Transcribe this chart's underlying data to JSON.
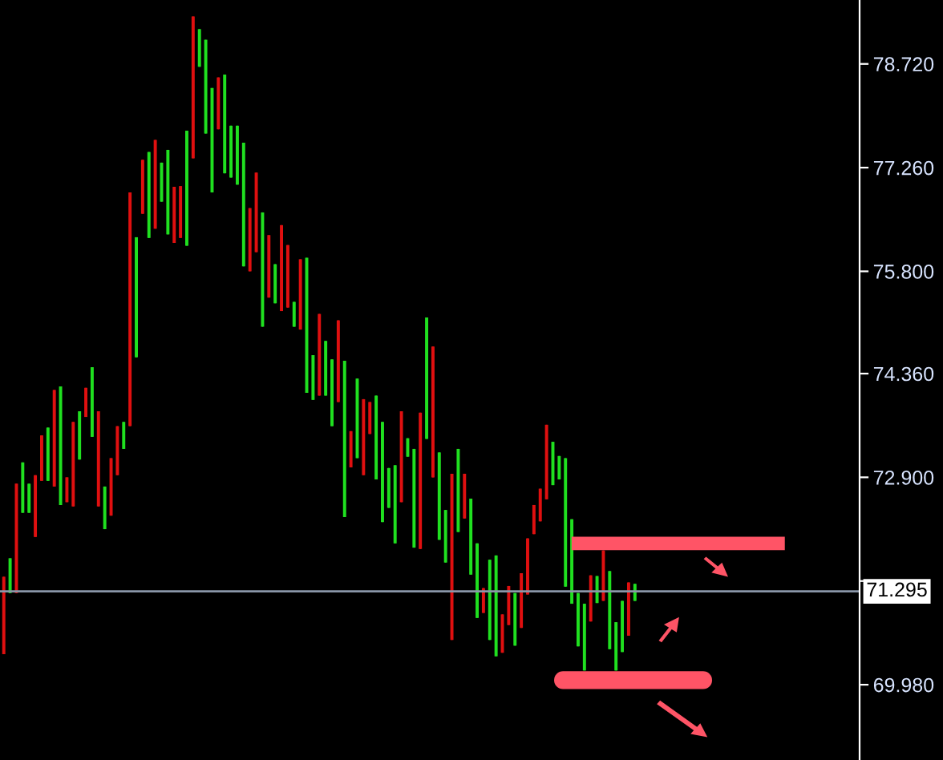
{
  "chart_data": {
    "type": "candlestick",
    "categories": [
      null,
      null,
      null,
      null,
      null,
      null,
      null,
      null,
      null,
      null,
      null,
      null,
      null,
      null,
      null,
      null,
      null,
      null,
      null,
      null,
      null,
      null,
      null,
      null,
      null,
      null,
      null,
      null,
      null,
      null,
      null,
      null,
      null,
      null,
      null,
      null,
      null,
      null,
      null,
      null,
      null,
      null,
      null,
      null,
      null,
      null,
      null,
      null,
      null,
      null,
      null,
      null,
      null,
      null,
      null,
      null,
      null,
      null,
      null,
      null,
      null,
      null,
      null,
      null,
      null,
      null,
      null,
      null,
      null,
      null,
      null,
      null,
      null,
      null,
      null,
      null,
      null,
      null,
      null,
      null,
      null,
      null,
      null,
      null,
      null,
      null,
      null,
      null,
      null,
      null,
      null,
      null,
      null,
      null,
      null,
      null,
      null,
      null,
      null,
      null,
      null,
      null,
      null,
      null,
      null,
      null,
      null,
      null,
      null,
      null,
      null,
      null,
      null,
      null,
      null,
      null,
      null,
      null,
      null,
      null,
      null,
      null,
      null,
      null,
      null,
      null,
      null,
      null,
      null,
      null,
      null,
      null,
      null,
      null,
      null,
      null
    ],
    "ohlc": [
      [
        70.41,
        71.5,
        70.41,
        71.5
      ],
      [
        71.76,
        71.76,
        71.27,
        71.27
      ],
      [
        71.27,
        72.81,
        71.27,
        72.81
      ],
      [
        73.11,
        73.11,
        72.4,
        72.4
      ],
      [
        72.81,
        72.81,
        72.4,
        72.4
      ],
      [
        72.06,
        72.93,
        72.06,
        72.93
      ],
      [
        72.85,
        73.49,
        72.85,
        73.49
      ],
      [
        73.6,
        73.6,
        72.85,
        72.85
      ],
      [
        72.77,
        74.13,
        72.77,
        74.13
      ],
      [
        74.18,
        74.18,
        72.51,
        72.51
      ],
      [
        72.55,
        72.9,
        72.55,
        72.9
      ],
      [
        72.49,
        73.68,
        72.49,
        73.68
      ],
      [
        73.83,
        73.83,
        73.15,
        73.15
      ],
      [
        73.75,
        74.16,
        73.75,
        74.16
      ],
      [
        74.45,
        74.45,
        73.47,
        73.47
      ],
      [
        72.49,
        73.83,
        72.49,
        73.83
      ],
      [
        72.77,
        72.77,
        72.17,
        72.17
      ],
      [
        72.36,
        73.17,
        72.36,
        73.17
      ],
      [
        72.93,
        73.62,
        72.93,
        73.62
      ],
      [
        73.68,
        73.68,
        73.3,
        73.3
      ],
      [
        73.62,
        76.91,
        73.62,
        76.91
      ],
      [
        76.28,
        76.28,
        74.59,
        74.59
      ],
      [
        76.61,
        77.37,
        76.61,
        77.37
      ],
      [
        77.48,
        77.48,
        76.27,
        76.27
      ],
      [
        76.4,
        77.65,
        76.4,
        77.65
      ],
      [
        77.33,
        77.33,
        76.78,
        76.78
      ],
      [
        77.51,
        77.51,
        76.32,
        76.32
      ],
      [
        76.2,
        76.99,
        76.2,
        76.99
      ],
      [
        76.27,
        77.0,
        76.27,
        77.0
      ],
      [
        77.78,
        77.78,
        76.16,
        76.16
      ],
      [
        77.39,
        79.39,
        77.39,
        79.39
      ],
      [
        79.21,
        79.21,
        78.68,
        78.68
      ],
      [
        79.06,
        79.06,
        77.74,
        77.74
      ],
      [
        78.38,
        78.38,
        76.91,
        76.91
      ],
      [
        77.8,
        78.53,
        77.8,
        78.53
      ],
      [
        78.57,
        78.57,
        77.18,
        77.18
      ],
      [
        77.85,
        77.85,
        77.12,
        77.12
      ],
      [
        77.85,
        77.85,
        77.02,
        77.02
      ],
      [
        77.61,
        77.61,
        75.87,
        75.87
      ],
      [
        75.8,
        76.69,
        75.8,
        76.69
      ],
      [
        76.07,
        77.19,
        76.07,
        77.19
      ],
      [
        76.63,
        76.63,
        75.02,
        75.02
      ],
      [
        75.43,
        76.31,
        75.43,
        76.31
      ],
      [
        75.9,
        75.9,
        75.35,
        75.35
      ],
      [
        75.24,
        76.45,
        75.24,
        76.45
      ],
      [
        75.29,
        76.17,
        75.29,
        76.17
      ],
      [
        75.37,
        75.37,
        75.02,
        75.02
      ],
      [
        74.98,
        75.97,
        74.98,
        75.97
      ],
      [
        75.99,
        75.99,
        74.09,
        74.09
      ],
      [
        74.62,
        74.62,
        73.99,
        73.99
      ],
      [
        74.05,
        75.2,
        74.05,
        75.2
      ],
      [
        74.82,
        74.82,
        74.05,
        74.05
      ],
      [
        74.56,
        74.56,
        73.62,
        73.62
      ],
      [
        73.96,
        75.11,
        73.96,
        75.11
      ],
      [
        74.54,
        74.54,
        72.34,
        72.34
      ],
      [
        73.04,
        73.55,
        73.04,
        73.55
      ],
      [
        74.29,
        74.29,
        73.17,
        73.17
      ],
      [
        72.93,
        74.0,
        72.93,
        74.0
      ],
      [
        73.51,
        73.96,
        73.51,
        73.96
      ],
      [
        74.05,
        74.05,
        72.87,
        72.87
      ],
      [
        73.68,
        73.68,
        72.27,
        72.27
      ],
      [
        73.03,
        73.03,
        72.47,
        72.47
      ],
      [
        73.07,
        73.07,
        71.97,
        71.97
      ],
      [
        72.55,
        73.83,
        72.55,
        73.83
      ],
      [
        73.45,
        73.45,
        73.19,
        73.19
      ],
      [
        73.3,
        73.3,
        71.91,
        71.91
      ],
      [
        71.89,
        73.81,
        71.89,
        73.81
      ],
      [
        75.15,
        75.15,
        73.44,
        73.44
      ],
      [
        72.9,
        74.74,
        72.9,
        74.74
      ],
      [
        73.25,
        73.25,
        72.02,
        72.02
      ],
      [
        72.44,
        72.44,
        71.7,
        71.7
      ],
      [
        70.61,
        72.95,
        70.61,
        72.95
      ],
      [
        73.3,
        73.3,
        72.13,
        72.13
      ],
      [
        72.32,
        72.95,
        72.32,
        72.95
      ],
      [
        72.6,
        72.6,
        71.53,
        71.53
      ],
      [
        71.97,
        71.97,
        70.92,
        70.92
      ],
      [
        70.99,
        71.34,
        70.99,
        71.34
      ],
      [
        71.74,
        71.74,
        70.61,
        70.61
      ],
      [
        71.8,
        71.8,
        70.38,
        70.38
      ],
      [
        70.43,
        70.97,
        70.43,
        70.97
      ],
      [
        70.82,
        71.37,
        70.82,
        71.37
      ],
      [
        71.27,
        71.27,
        70.53,
        70.53
      ],
      [
        70.78,
        71.55,
        70.78,
        71.55
      ],
      [
        71.25,
        72.04,
        71.25,
        72.04
      ],
      [
        72.1,
        72.51,
        72.1,
        72.51
      ],
      [
        72.28,
        72.74,
        72.28,
        72.74
      ],
      [
        72.59,
        73.64,
        72.59,
        73.64
      ],
      [
        73.4,
        73.4,
        72.79,
        72.79
      ],
      [
        73.2,
        73.2,
        72.87,
        72.87
      ],
      [
        73.17,
        73.17,
        71.36,
        71.36
      ],
      [
        72.31,
        72.31,
        71.12,
        71.12
      ],
      [
        71.27,
        71.27,
        70.52,
        70.52
      ],
      [
        71.12,
        71.12,
        70.18,
        70.18
      ],
      [
        70.87,
        71.52,
        70.87,
        71.52
      ],
      [
        71.51,
        71.51,
        71.13,
        71.13
      ],
      [
        71.16,
        71.87,
        71.16,
        71.87
      ],
      [
        71.58,
        71.58,
        70.48,
        70.48
      ],
      [
        70.86,
        70.86,
        70.18,
        70.18
      ],
      [
        71.16,
        71.16,
        70.44,
        70.44
      ],
      [
        70.67,
        71.42,
        70.67,
        71.42
      ],
      [
        71.4,
        71.4,
        71.16,
        71.16
      ],
      null,
      null,
      null,
      null,
      null,
      null,
      null,
      null,
      null,
      null,
      null,
      null,
      null,
      null,
      null,
      null,
      null,
      null,
      null,
      null,
      null,
      null,
      null,
      null,
      null,
      null,
      null,
      null,
      null,
      null,
      null,
      null,
      null,
      null,
      null
    ],
    "colors": [
      "#e01010",
      "#20e020",
      "#e01010",
      "#20e020",
      "#20e020",
      "#e01010",
      "#e01010",
      "#20e020",
      "#e01010",
      "#20e020",
      "#e01010",
      "#e01010",
      "#20e020",
      "#e01010",
      "#20e020",
      "#e01010",
      "#20e020",
      "#e01010",
      "#e01010",
      "#20e020",
      "#e01010",
      "#20e020",
      "#e01010",
      "#20e020",
      "#e01010",
      "#20e020",
      "#20e020",
      "#e01010",
      "#e01010",
      "#20e020",
      "#e01010",
      "#20e020",
      "#20e020",
      "#20e020",
      "#e01010",
      "#20e020",
      "#20e020",
      "#20e020",
      "#20e020",
      "#e01010",
      "#e01010",
      "#20e020",
      "#e01010",
      "#20e020",
      "#e01010",
      "#e01010",
      "#20e020",
      "#e01010",
      "#20e020",
      "#20e020",
      "#e01010",
      "#20e020",
      "#20e020",
      "#e01010",
      "#20e020",
      "#e01010",
      "#20e020",
      "#e01010",
      "#e01010",
      "#20e020",
      "#20e020",
      "#20e020",
      "#20e020",
      "#e01010",
      "#20e020",
      "#20e020",
      "#e01010",
      "#20e020",
      "#e01010",
      "#20e020",
      "#20e020",
      "#e01010",
      "#20e020",
      "#e01010",
      "#20e020",
      "#20e020",
      "#e01010",
      "#20e020",
      "#20e020",
      "#e01010",
      "#e01010",
      "#20e020",
      "#e01010",
      "#e01010",
      "#e01010",
      "#e01010",
      "#e01010",
      "#20e020",
      "#20e020",
      "#20e020",
      "#20e020",
      "#20e020",
      "#20e020",
      "#e01010",
      "#20e020",
      "#e01010",
      "#20e020",
      "#20e020",
      "#20e020",
      "#e01010",
      "#20e020",
      null,
      null,
      null,
      null,
      null,
      null,
      null,
      null,
      null,
      null,
      null,
      null,
      null,
      null,
      null,
      null,
      null,
      null,
      null,
      null,
      null,
      null,
      null,
      null,
      null,
      null,
      null,
      null,
      null,
      null,
      null,
      null,
      null,
      null,
      null
    ],
    "ylim": [
      68.92,
      79.62
    ],
    "yticks": [
      {
        "value": 69.98,
        "label": "69.980"
      },
      {
        "value": 71.44,
        "label": null
      },
      {
        "value": 72.9,
        "label": "72.900"
      },
      {
        "value": 74.36,
        "label": "74.360"
      },
      {
        "value": 75.8,
        "label": "75.800"
      },
      {
        "value": 77.26,
        "label": "77.260"
      },
      {
        "value": 78.72,
        "label": "78.720"
      }
    ],
    "ref_lines": [
      {
        "axis": "y",
        "value": 71.295,
        "label": "71.295",
        "color": "#8a96a8"
      }
    ],
    "tick_labels": "y",
    "grid": false,
    "legend": false
  }
}
